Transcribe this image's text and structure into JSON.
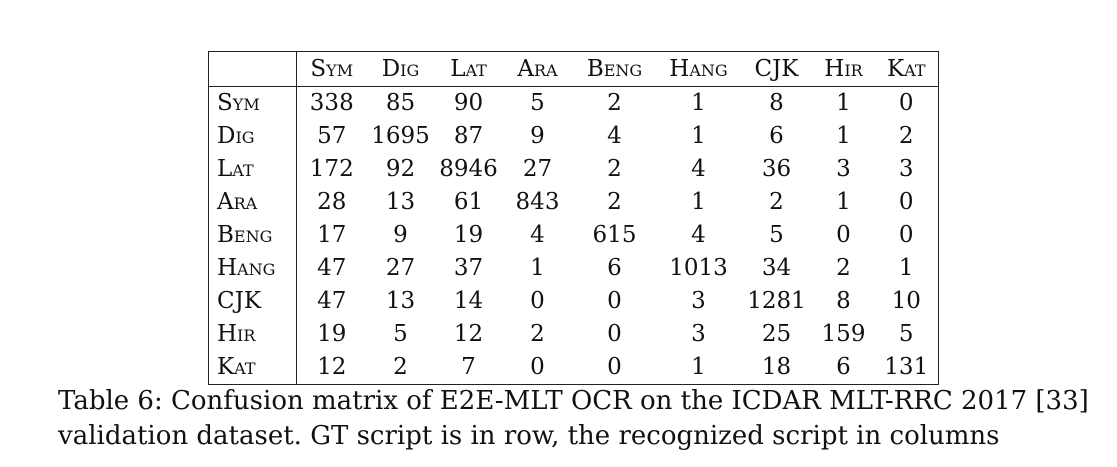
{
  "table": {
    "columns": [
      "Sym",
      "Dig",
      "Lat",
      "Ara",
      "Beng",
      "Hang",
      "CJK",
      "Hir",
      "Kat"
    ],
    "rows": [
      {
        "label": "Sym",
        "values": [
          "338",
          "85",
          "90",
          "5",
          "2",
          "1",
          "8",
          "1",
          "0"
        ]
      },
      {
        "label": "Dig",
        "values": [
          "57",
          "1695",
          "87",
          "9",
          "4",
          "1",
          "6",
          "1",
          "2"
        ]
      },
      {
        "label": "Lat",
        "values": [
          "172",
          "92",
          "8946",
          "27",
          "2",
          "4",
          "36",
          "3",
          "3"
        ]
      },
      {
        "label": "Ara",
        "values": [
          "28",
          "13",
          "61",
          "843",
          "2",
          "1",
          "2",
          "1",
          "0"
        ]
      },
      {
        "label": "Beng",
        "values": [
          "17",
          "9",
          "19",
          "4",
          "615",
          "4",
          "5",
          "0",
          "0"
        ]
      },
      {
        "label": "Hang",
        "values": [
          "47",
          "27",
          "37",
          "1",
          "6",
          "1013",
          "34",
          "2",
          "1"
        ]
      },
      {
        "label": "CJK",
        "values": [
          "47",
          "13",
          "14",
          "0",
          "0",
          "3",
          "1281",
          "8",
          "10"
        ]
      },
      {
        "label": "Hir",
        "values": [
          "19",
          "5",
          "12",
          "2",
          "0",
          "3",
          "25",
          "159",
          "5"
        ]
      },
      {
        "label": "Kat",
        "values": [
          "12",
          "2",
          "7",
          "0",
          "0",
          "1",
          "18",
          "6",
          "131"
        ]
      }
    ]
  },
  "caption": {
    "line1": "Table 6: Confusion matrix of E2E-MLT OCR on the ICDAR MLT-RRC 2017 [33]",
    "line2": "validation dataset. GT script is in row, the recognized script in columns"
  }
}
